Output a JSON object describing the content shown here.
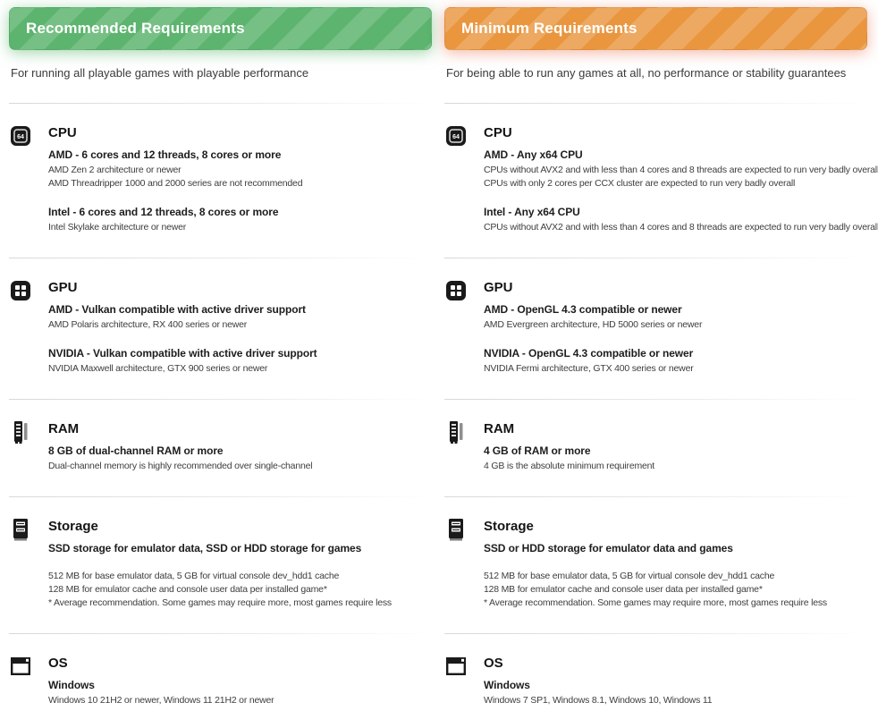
{
  "page_title": "System Requirements",
  "columns": [
    {
      "id": "recommended",
      "banner": {
        "label": "Recommended Requirements",
        "base_color": "#5cb46e",
        "stripe_color": "rgba(255,255,255,0.16)",
        "glow_color": "rgba(97,186,116,0.6)"
      },
      "subtitle": "For running all playable games with playable performance",
      "sections": [
        {
          "icon": "cpu-icon",
          "title": "CPU",
          "groups": [
            {
              "heading": "AMD - 6 cores and 12 threads, 8 cores or more",
              "lines": [
                "AMD Zen 2 architecture or newer",
                "AMD Threadripper 1000 and 2000 series are not recommended"
              ]
            },
            {
              "heading": "Intel - 6 cores and 12 threads, 8 cores or more",
              "lines": [
                "Intel Skylake architecture or newer"
              ]
            }
          ]
        },
        {
          "icon": "gpu-icon",
          "title": "GPU",
          "groups": [
            {
              "heading": "AMD - Vulkan compatible with active driver support",
              "lines": [
                "AMD Polaris architecture, RX 400 series or newer"
              ]
            },
            {
              "heading": "NVIDIA - Vulkan compatible with active driver support",
              "lines": [
                "NVIDIA Maxwell architecture, GTX 900 series or newer"
              ]
            }
          ]
        },
        {
          "icon": "ram-icon",
          "title": "RAM",
          "groups": [
            {
              "heading": "8 GB of dual-channel RAM or more",
              "lines": [
                "Dual-channel memory is highly recommended over single-channel"
              ]
            }
          ]
        },
        {
          "icon": "storage-icon",
          "title": "Storage",
          "groups": [
            {
              "heading": "SSD storage for emulator data, SSD or HDD storage for games",
              "lines": []
            },
            {
              "heading": "",
              "lines": [
                "512 MB for base emulator data, 5 GB for virtual console dev_hdd1 cache",
                "128 MB for emulator cache and console user data per installed game*",
                "* Average recommendation. Some games may require more, most games require less"
              ]
            }
          ]
        },
        {
          "icon": "os-icon",
          "title": "OS",
          "groups": [
            {
              "heading": "Windows",
              "lines": [
                "Windows 10 21H2 or newer, Windows 11 21H2 or newer"
              ]
            }
          ]
        }
      ]
    },
    {
      "id": "minimum",
      "banner": {
        "label": "Minimum Requirements",
        "base_color": "#e9963e",
        "stripe_color": "rgba(255,255,255,0.18)",
        "glow_color": "rgba(238,110,78,0.5)"
      },
      "subtitle": "For being able to run any games at all, no performance or stability guarantees",
      "sections": [
        {
          "icon": "cpu-icon",
          "title": "CPU",
          "groups": [
            {
              "heading": "AMD - Any x64 CPU",
              "lines": [
                "CPUs without AVX2 and with less than 4 cores and 8 threads are expected to run very badly overall",
                "CPUs with only 2 cores per CCX cluster are expected to run very badly overall"
              ]
            },
            {
              "heading": "Intel - Any x64 CPU",
              "lines": [
                "CPUs without AVX2 and with less than 4 cores and 8 threads are expected to run very badly overall"
              ]
            }
          ]
        },
        {
          "icon": "gpu-icon",
          "title": "GPU",
          "groups": [
            {
              "heading": "AMD - OpenGL 4.3 compatible or newer",
              "lines": [
                "AMD Evergreen architecture, HD 5000 series or newer"
              ]
            },
            {
              "heading": "NVIDIA - OpenGL 4.3 compatible or newer",
              "lines": [
                "NVIDIA Fermi architecture, GTX 400 series or newer"
              ]
            }
          ]
        },
        {
          "icon": "ram-icon",
          "title": "RAM",
          "groups": [
            {
              "heading": "4 GB of RAM or more",
              "lines": [
                "4 GB is the absolute minimum requirement"
              ]
            }
          ]
        },
        {
          "icon": "storage-icon",
          "title": "Storage",
          "groups": [
            {
              "heading": "SSD or HDD storage for emulator data and games",
              "lines": []
            },
            {
              "heading": "",
              "lines": [
                "512 MB for base emulator data, 5 GB for virtual console dev_hdd1 cache",
                "128 MB for emulator cache and console user data per installed game*",
                "* Average recommendation. Some games may require more, most games require less"
              ]
            }
          ]
        },
        {
          "icon": "os-icon",
          "title": "OS",
          "groups": [
            {
              "heading": "Windows",
              "lines": [
                "Windows 7 SP1, Windows 8.1, Windows 10, Windows 11"
              ]
            }
          ]
        }
      ]
    }
  ]
}
